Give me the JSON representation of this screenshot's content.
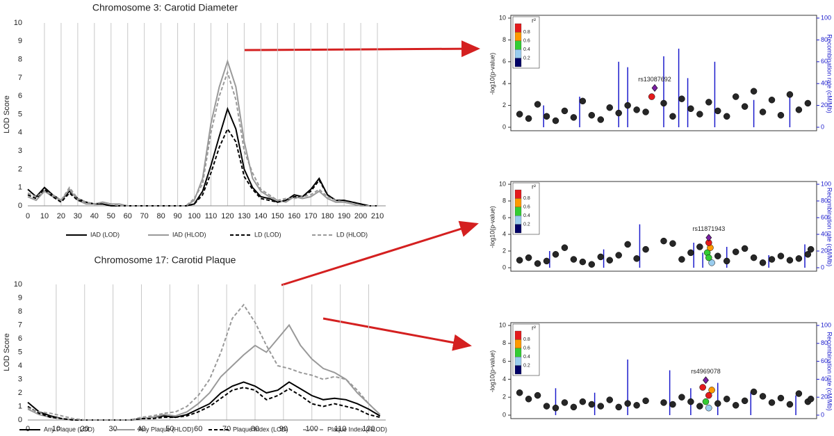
{
  "chart_data": [
    {
      "type": "line",
      "title": "Chromosome 3: Carotid Diameter",
      "ylabel": "LOD Score",
      "xlim": [
        0,
        215
      ],
      "xticks": [
        0,
        10,
        20,
        30,
        40,
        50,
        60,
        70,
        80,
        90,
        100,
        110,
        120,
        130,
        140,
        150,
        160,
        170,
        180,
        190,
        200,
        210
      ],
      "ylim": [
        0,
        10
      ],
      "yticks": [
        0,
        1,
        2,
        3,
        4,
        5,
        6,
        7,
        8,
        9,
        10
      ],
      "grid": "x",
      "x": [
        0,
        5,
        10,
        15,
        20,
        25,
        30,
        35,
        40,
        45,
        50,
        55,
        60,
        65,
        70,
        75,
        80,
        85,
        90,
        95,
        100,
        105,
        110,
        115,
        120,
        125,
        130,
        135,
        140,
        145,
        150,
        155,
        160,
        165,
        170,
        175,
        180,
        185,
        190,
        195,
        200,
        205,
        210
      ],
      "series": [
        {
          "name": "IAD (LOD)",
          "color": "#000000",
          "style": "solid",
          "values": [
            0.9,
            0.5,
            1.0,
            0.6,
            0.3,
            0.8,
            0.4,
            0.2,
            0.1,
            0.1,
            0,
            0,
            0,
            0,
            0,
            0,
            0,
            0,
            0,
            0,
            0.1,
            0.8,
            2.2,
            3.8,
            5.3,
            4.2,
            2.0,
            1.0,
            0.5,
            0.4,
            0.2,
            0.3,
            0.6,
            0.5,
            0.9,
            1.5,
            0.6,
            0.3,
            0.3,
            0.2,
            0.1,
            0,
            0
          ]
        },
        {
          "name": "IAD (HLOD)",
          "color": "#999999",
          "style": "solid",
          "values": [
            0.5,
            0.3,
            0.8,
            0.5,
            0.3,
            0.9,
            0.3,
            0.1,
            0.1,
            0.2,
            0.1,
            0.1,
            0,
            0,
            0,
            0,
            0,
            0,
            0,
            0,
            0.3,
            1.5,
            4.5,
            6.5,
            7.9,
            6.5,
            3.5,
            1.5,
            0.8,
            0.5,
            0.3,
            0.2,
            0.5,
            0.4,
            0.5,
            0.8,
            0.4,
            0.2,
            0.2,
            0.1,
            0,
            0,
            0
          ]
        },
        {
          "name": "LD (LOD)",
          "color": "#000000",
          "style": "dashed",
          "values": [
            0.6,
            0.4,
            0.9,
            0.5,
            0.2,
            0.7,
            0.3,
            0.2,
            0.1,
            0.1,
            0,
            0,
            0,
            0,
            0,
            0,
            0,
            0,
            0,
            0,
            0.1,
            0.6,
            1.8,
            3.2,
            4.2,
            3.5,
            1.6,
            0.9,
            0.4,
            0.3,
            0.2,
            0.3,
            0.5,
            0.5,
            0.8,
            1.4,
            0.6,
            0.3,
            0.3,
            0.2,
            0.1,
            0,
            0
          ]
        },
        {
          "name": "LD (HLOD)",
          "color": "#999999",
          "style": "dashed",
          "values": [
            0.7,
            0.5,
            0.8,
            0.6,
            0.3,
            1.0,
            0.4,
            0.2,
            0.1,
            0.2,
            0.1,
            0,
            0,
            0,
            0,
            0,
            0,
            0,
            0,
            0,
            0.4,
            1.2,
            4.0,
            6.0,
            7.3,
            5.8,
            3.0,
            1.8,
            0.9,
            0.6,
            0.3,
            0.4,
            0.4,
            0.5,
            0.6,
            0.9,
            0.5,
            0.3,
            0.2,
            0.1,
            0,
            0,
            0
          ]
        }
      ]
    },
    {
      "type": "line",
      "title": "Chromosome 17: Carotid Plaque",
      "ylabel": "LOD Score",
      "xlim": [
        0,
        126
      ],
      "xticks": [
        0,
        10,
        20,
        30,
        40,
        50,
        60,
        70,
        80,
        90,
        100,
        110,
        120
      ],
      "ylim": [
        0,
        10
      ],
      "yticks": [
        0,
        1,
        2,
        3,
        4,
        5,
        6,
        7,
        8,
        9,
        10
      ],
      "grid": "x",
      "x": [
        0,
        4,
        8,
        12,
        16,
        20,
        24,
        28,
        32,
        36,
        40,
        44,
        48,
        52,
        56,
        60,
        64,
        68,
        72,
        76,
        80,
        84,
        88,
        92,
        96,
        100,
        104,
        108,
        112,
        116,
        120,
        124
      ],
      "series": [
        {
          "name": "Any Plaque (LOD)",
          "color": "#000000",
          "style": "solid",
          "values": [
            1.3,
            0.6,
            0.3,
            0.1,
            0,
            0,
            0,
            0,
            0,
            0,
            0.1,
            0.2,
            0.3,
            0.2,
            0.4,
            0.8,
            1.2,
            2.0,
            2.5,
            2.8,
            2.5,
            2.0,
            2.2,
            2.8,
            2.3,
            1.8,
            1.5,
            1.6,
            1.5,
            1.2,
            0.8,
            0.3
          ]
        },
        {
          "name": "Any Plaque (HLOD)",
          "color": "#999999",
          "style": "solid",
          "values": [
            0.8,
            0.4,
            0.2,
            0.1,
            0,
            0,
            0,
            0,
            0,
            0,
            0.1,
            0.2,
            0.4,
            0.3,
            0.6,
            1.2,
            2.0,
            3.2,
            4.0,
            4.8,
            5.5,
            5.0,
            6.0,
            7.0,
            5.5,
            4.5,
            3.8,
            3.5,
            3.0,
            2.0,
            1.2,
            0.4
          ]
        },
        {
          "name": "Plaque Index (LOD)",
          "color": "#000000",
          "style": "dashed",
          "values": [
            1.0,
            0.5,
            0.2,
            0.1,
            0,
            0,
            0,
            0,
            0,
            0,
            0.1,
            0.1,
            0.2,
            0.2,
            0.3,
            0.6,
            1.0,
            1.6,
            2.2,
            2.4,
            2.2,
            1.5,
            1.8,
            2.3,
            1.8,
            1.2,
            1.0,
            1.2,
            1.0,
            0.8,
            0.4,
            0.2
          ]
        },
        {
          "name": "Plaque Index (HLOD)",
          "color": "#999999",
          "style": "dashed",
          "values": [
            0.9,
            0.6,
            0.5,
            0.3,
            0.1,
            0,
            0,
            0,
            0,
            0,
            0.2,
            0.3,
            0.5,
            0.6,
            1.0,
            1.8,
            3.0,
            5.0,
            7.5,
            8.5,
            7.2,
            5.5,
            4.0,
            3.8,
            3.5,
            3.3,
            3.0,
            3.2,
            3.0,
            2.2,
            1.2,
            0.4
          ]
        }
      ]
    },
    {
      "type": "scatter",
      "ylabel": "-log10(p-value)",
      "y2label": "Recombination rate (cM/Mb)",
      "annotation": "rs13087692",
      "legend_title": "r²",
      "legend_ticks": [
        0.8,
        0.6,
        0.4,
        0.2
      ],
      "legend_colors": [
        "#e41a1c",
        "#ff9900",
        "#33cc33",
        "#99ccee",
        "#000066"
      ],
      "xlim": [
        0,
        100
      ],
      "ylim": [
        0,
        10
      ],
      "yticks": [
        0,
        2,
        4,
        6,
        8,
        10
      ],
      "y2lim": [
        0,
        100
      ],
      "y2ticks": [
        0,
        20,
        40,
        60,
        80,
        100
      ],
      "series": [
        {
          "color": "#262626",
          "x": [
            2,
            5,
            8,
            11,
            14,
            17,
            20,
            23,
            26,
            29,
            32,
            35,
            38,
            41,
            44,
            50,
            53,
            56,
            59,
            62,
            65,
            68,
            71,
            74,
            77,
            80,
            83,
            86,
            89,
            92,
            95,
            98
          ],
          "values": [
            1.2,
            0.8,
            2.1,
            1.0,
            0.6,
            1.5,
            0.9,
            2.4,
            1.1,
            0.7,
            1.8,
            1.3,
            2.0,
            1.6,
            1.4,
            2.2,
            1.0,
            2.6,
            1.7,
            1.2,
            2.3,
            1.5,
            1.0,
            2.8,
            1.9,
            3.3,
            1.4,
            2.5,
            1.1,
            3.0,
            1.6,
            2.2
          ]
        },
        {
          "color": "#e41a1c",
          "x": [
            46
          ],
          "values": [
            2.8
          ]
        },
        {
          "color": "#7a1fa2",
          "x": [
            47
          ],
          "values": [
            3.6
          ]
        }
      ],
      "recombination": {
        "color": "#1a1acc",
        "axis": "y2",
        "x": [
          10,
          22,
          35,
          38,
          50,
          55,
          58,
          67,
          80,
          92
        ],
        "values": [
          20,
          28,
          60,
          55,
          65,
          72,
          45,
          60,
          25,
          30
        ]
      }
    },
    {
      "type": "scatter",
      "ylabel": "-log10(p-value)",
      "y2label": "Recombination rate (cM/Mb)",
      "annotation": "rs11871943",
      "legend_title": "r²",
      "legend_ticks": [
        0.8,
        0.6,
        0.4,
        0.2
      ],
      "legend_colors": [
        "#e41a1c",
        "#ff9900",
        "#33cc33",
        "#99ccee",
        "#000066"
      ],
      "xlim": [
        0,
        100
      ],
      "ylim": [
        0,
        10
      ],
      "yticks": [
        0,
        2,
        4,
        6,
        8,
        10
      ],
      "y2lim": [
        0,
        100
      ],
      "y2ticks": [
        0,
        20,
        40,
        60,
        80,
        100
      ],
      "series": [
        {
          "color": "#262626",
          "x": [
            2,
            5,
            8,
            11,
            14,
            17,
            20,
            23,
            26,
            29,
            32,
            35,
            38,
            41,
            44,
            50,
            53,
            56,
            59,
            62,
            68,
            71,
            74,
            77,
            80,
            83,
            86,
            89,
            92,
            95,
            98,
            99
          ],
          "values": [
            0.9,
            1.2,
            0.5,
            0.8,
            1.6,
            2.4,
            1.0,
            0.7,
            0.4,
            1.3,
            0.9,
            1.5,
            2.8,
            1.1,
            2.2,
            3.2,
            2.9,
            1.0,
            1.8,
            2.5,
            1.4,
            0.8,
            1.9,
            2.3,
            1.2,
            0.6,
            1.0,
            1.4,
            0.9,
            1.1,
            1.6,
            2.2
          ]
        },
        {
          "color": "#99ccee",
          "x": [
            66
          ],
          "values": [
            0.6
          ]
        },
        {
          "color": "#33cc33",
          "x": [
            64.5,
            65
          ],
          "values": [
            1.8,
            1.2
          ]
        },
        {
          "color": "#ff9900",
          "x": [
            65.5
          ],
          "values": [
            2.4
          ]
        },
        {
          "color": "#e41a1c",
          "x": [
            65
          ],
          "values": [
            3.0
          ]
        },
        {
          "color": "#7a1fa2",
          "x": [
            65
          ],
          "values": [
            3.6
          ]
        }
      ],
      "recombination": {
        "color": "#1a1acc",
        "axis": "y2",
        "x": [
          12,
          30,
          42,
          60,
          63,
          71,
          85,
          97
        ],
        "values": [
          20,
          22,
          52,
          30,
          18,
          25,
          15,
          28
        ]
      }
    },
    {
      "type": "scatter",
      "ylabel": "-log10(p-value)",
      "y2label": "Recombination rate (cM/Mb)",
      "annotation": "rs4969078",
      "legend_title": "r²",
      "legend_ticks": [
        0.8,
        0.6,
        0.4,
        0.2
      ],
      "legend_colors": [
        "#e41a1c",
        "#ff9900",
        "#33cc33",
        "#99ccee",
        "#000066"
      ],
      "xlim": [
        0,
        100
      ],
      "ylim": [
        0,
        10
      ],
      "yticks": [
        0,
        2,
        4,
        6,
        8,
        10
      ],
      "y2lim": [
        0,
        100
      ],
      "y2ticks": [
        0,
        20,
        40,
        60,
        80,
        100
      ],
      "series": [
        {
          "color": "#262626",
          "x": [
            2,
            5,
            8,
            11,
            14,
            17,
            20,
            23,
            26,
            29,
            32,
            35,
            38,
            41,
            44,
            50,
            53,
            56,
            59,
            62,
            68,
            71,
            74,
            77,
            80,
            83,
            86,
            89,
            92,
            95,
            98,
            99
          ],
          "values": [
            2.5,
            1.8,
            2.2,
            1.0,
            0.8,
            1.4,
            0.9,
            1.5,
            1.2,
            1.0,
            1.7,
            0.9,
            1.3,
            1.1,
            1.6,
            1.4,
            1.2,
            2.0,
            1.5,
            1.0,
            1.3,
            1.8,
            1.1,
            1.6,
            2.6,
            2.1,
            1.4,
            1.9,
            1.2,
            2.4,
            1.5,
            1.8
          ]
        },
        {
          "color": "#99ccee",
          "x": [
            65
          ],
          "values": [
            0.8
          ]
        },
        {
          "color": "#33cc33",
          "x": [
            64
          ],
          "values": [
            1.5
          ]
        },
        {
          "color": "#ff9900",
          "x": [
            66
          ],
          "values": [
            2.8
          ]
        },
        {
          "color": "#e41a1c",
          "x": [
            63,
            65
          ],
          "values": [
            3.1,
            2.2
          ]
        },
        {
          "color": "#7a1fa2",
          "x": [
            64
          ],
          "values": [
            3.9
          ]
        }
      ],
      "recombination": {
        "color": "#1a1acc",
        "axis": "y2",
        "x": [
          14,
          27,
          38,
          52,
          59,
          68,
          79,
          94
        ],
        "values": [
          30,
          25,
          62,
          50,
          30,
          36,
          26,
          22
        ]
      }
    }
  ]
}
